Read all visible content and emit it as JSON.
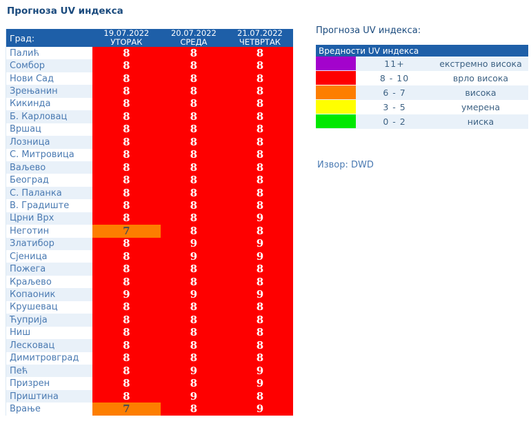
{
  "page_title": "Прогноза UV индекса",
  "table": {
    "header": {
      "city_label": "Град:",
      "days": [
        {
          "date": "19.07.2022",
          "day": "УТОРАК"
        },
        {
          "date": "20.07.2022",
          "day": "СРЕДА"
        },
        {
          "date": "21.07.2022",
          "day": "ЧЕТВРТАК"
        }
      ]
    },
    "rows": [
      {
        "city": "Палић",
        "values": [
          8,
          8,
          8
        ]
      },
      {
        "city": "Сомбор",
        "values": [
          8,
          8,
          8
        ]
      },
      {
        "city": "Нови Сад",
        "values": [
          8,
          8,
          8
        ]
      },
      {
        "city": "Зрењанин",
        "values": [
          8,
          8,
          8
        ]
      },
      {
        "city": "Кикинда",
        "values": [
          8,
          8,
          8
        ]
      },
      {
        "city": "Б. Карловац",
        "values": [
          8,
          8,
          8
        ]
      },
      {
        "city": "Вршац",
        "values": [
          8,
          8,
          8
        ]
      },
      {
        "city": "Лозница",
        "values": [
          8,
          8,
          8
        ]
      },
      {
        "city": "С. Митровица",
        "values": [
          8,
          8,
          8
        ]
      },
      {
        "city": "Ваљево",
        "values": [
          8,
          8,
          8
        ]
      },
      {
        "city": "Београд",
        "values": [
          8,
          8,
          8
        ]
      },
      {
        "city": "С. Паланка",
        "values": [
          8,
          8,
          8
        ]
      },
      {
        "city": "В. Градиште",
        "values": [
          8,
          8,
          8
        ]
      },
      {
        "city": "Црни Врх",
        "values": [
          8,
          8,
          9
        ]
      },
      {
        "city": "Неготин",
        "values": [
          7,
          8,
          8
        ]
      },
      {
        "city": "Златибор",
        "values": [
          8,
          9,
          9
        ]
      },
      {
        "city": "Сјеница",
        "values": [
          8,
          9,
          9
        ]
      },
      {
        "city": "Пожега",
        "values": [
          8,
          8,
          8
        ]
      },
      {
        "city": "Краљево",
        "values": [
          8,
          8,
          8
        ]
      },
      {
        "city": "Копаоник",
        "values": [
          9,
          9,
          9
        ]
      },
      {
        "city": "Крушевац",
        "values": [
          8,
          8,
          8
        ]
      },
      {
        "city": "Ћуприја",
        "values": [
          8,
          8,
          8
        ]
      },
      {
        "city": "Ниш",
        "values": [
          8,
          8,
          8
        ]
      },
      {
        "city": "Лесковац",
        "values": [
          8,
          8,
          8
        ]
      },
      {
        "city": "Димитровград",
        "values": [
          8,
          8,
          8
        ]
      },
      {
        "city": "Пећ",
        "values": [
          8,
          9,
          9
        ]
      },
      {
        "city": "Призрен",
        "values": [
          8,
          8,
          9
        ]
      },
      {
        "city": "Приштина",
        "values": [
          8,
          9,
          8
        ]
      },
      {
        "city": "Врање",
        "values": [
          7,
          8,
          9
        ]
      }
    ]
  },
  "legend": {
    "title": "Прогноза UV индекса:",
    "header": "Вредности UV индекса",
    "items": [
      {
        "range": "11+",
        "label": "екстремно висока",
        "color": "#a303cc",
        "min": 11
      },
      {
        "range": "8 - 10",
        "label": "врло висока",
        "color": "#fe0000",
        "min": 8
      },
      {
        "range": "6 - 7",
        "label": "висока",
        "color": "#fd7e00",
        "min": 6
      },
      {
        "range": "3 - 5",
        "label": "умерена",
        "color": "#ffff00",
        "min": 3
      },
      {
        "range": "0 - 2",
        "label": "ниска",
        "color": "#00e800",
        "min": 0
      }
    ]
  },
  "source": "Извор: DWD",
  "colors": {
    "header_blue": "#1e5fa8",
    "title_text": "#1a4a7d",
    "city_text": "#4a7ab2",
    "alt_row_bg": "#e9f1f9",
    "legend_text": "#3d6284",
    "digit_on_red": "#ffffff",
    "digit_on_orange": "#4a4f55"
  }
}
